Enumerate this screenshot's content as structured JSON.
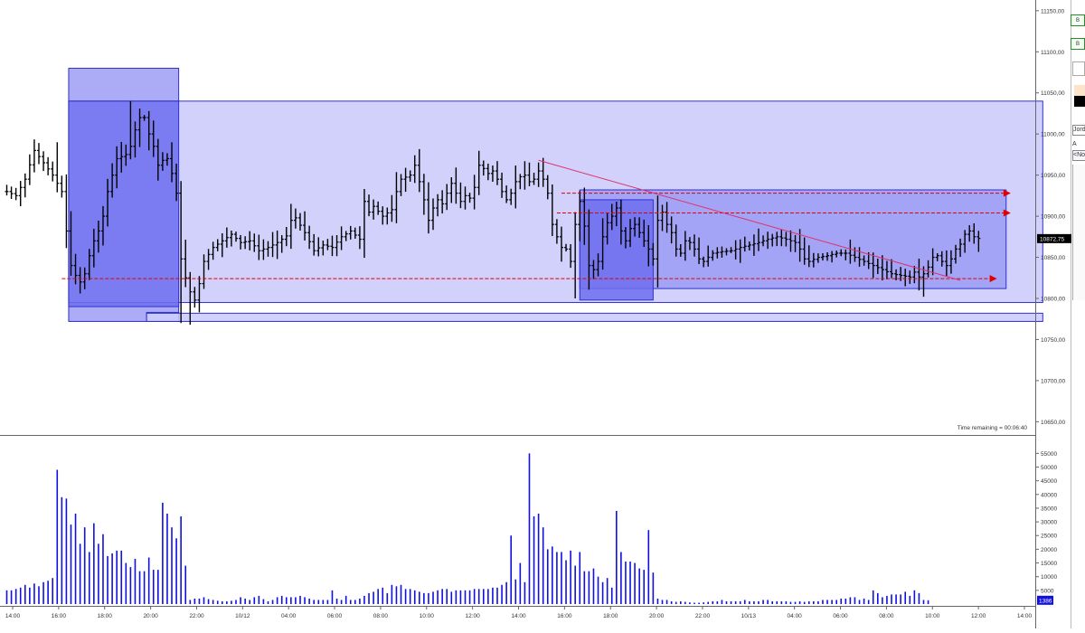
{
  "chart_data": [
    {
      "type": "ohlc",
      "x_ticks": [
        "14:00",
        "16:00",
        "18:00",
        "20:00",
        "22:00",
        "10/12",
        "04:00",
        "06:00",
        "08:00",
        "10:00",
        "12:00",
        "14:00",
        "16:00",
        "18:00",
        "20:00",
        "22:00",
        "10/13",
        "04:00",
        "06:00",
        "08:00",
        "10:00",
        "12:00",
        "14:00"
      ],
      "y_ticks": [
        "11150,00",
        "11100,00",
        "11050,00",
        "11000,00",
        "10950,00",
        "10900,00",
        "10850,00",
        "10800,00",
        "10750,00",
        "10700,00",
        "10650,00"
      ],
      "ylim": [
        10635,
        11163
      ],
      "last_price_label": "10872,75",
      "time_remaining": "Time remaining = 00:06:40",
      "anchors": [
        [
          0,
          10930
        ],
        [
          2,
          10925
        ],
        [
          4,
          10945
        ],
        [
          6,
          10980
        ],
        [
          8,
          10965
        ],
        [
          10,
          10950
        ],
        [
          12,
          10930
        ],
        [
          13,
          10882
        ],
        [
          14,
          10840
        ],
        [
          15,
          10828
        ],
        [
          16,
          10820
        ],
        [
          17,
          10830
        ],
        [
          18,
          10852
        ],
        [
          19,
          10870
        ],
        [
          20,
          10882
        ],
        [
          21,
          10900
        ],
        [
          22,
          10930
        ],
        [
          24,
          10970
        ],
        [
          26,
          10975
        ],
        [
          27,
          10985
        ],
        [
          28,
          11005
        ],
        [
          29,
          11020
        ],
        [
          30,
          11020
        ],
        [
          31,
          11000
        ],
        [
          32,
          10985
        ],
        [
          33,
          10962
        ],
        [
          34,
          10968
        ],
        [
          35,
          10970
        ],
        [
          36,
          10952
        ],
        [
          37,
          10928
        ],
        [
          38,
          10848
        ],
        [
          39,
          10825
        ],
        [
          40,
          10808
        ],
        [
          41,
          10798
        ],
        [
          42,
          10818
        ],
        [
          43,
          10845
        ],
        [
          45,
          10862
        ],
        [
          47,
          10870
        ],
        [
          49,
          10878
        ],
        [
          51,
          10868
        ],
        [
          53,
          10870
        ],
        [
          55,
          10858
        ],
        [
          57,
          10862
        ],
        [
          59,
          10868
        ],
        [
          61,
          10876
        ],
        [
          62,
          10895
        ],
        [
          63,
          10898
        ],
        [
          65,
          10880
        ],
        [
          67,
          10858
        ],
        [
          69,
          10865
        ],
        [
          71,
          10862
        ],
        [
          73,
          10875
        ],
        [
          75,
          10882
        ],
        [
          77,
          10872
        ],
        [
          78,
          10918
        ],
        [
          79,
          10905
        ],
        [
          80,
          10912
        ],
        [
          82,
          10900
        ],
        [
          84,
          10908
        ],
        [
          85,
          10930
        ],
        [
          86,
          10945
        ],
        [
          88,
          10950
        ],
        [
          89,
          10962
        ],
        [
          90,
          10942
        ],
        [
          91,
          10920
        ],
        [
          92,
          10895
        ],
        [
          93,
          10910
        ],
        [
          94,
          10920
        ],
        [
          95,
          10915
        ],
        [
          96,
          10928
        ],
        [
          97,
          10940
        ],
        [
          98,
          10928
        ],
        [
          99,
          10918
        ],
        [
          100,
          10925
        ],
        [
          101,
          10922
        ],
        [
          102,
          10935
        ],
        [
          103,
          10962
        ],
        [
          104,
          10958
        ],
        [
          105,
          10952
        ],
        [
          106,
          10955
        ],
        [
          107,
          10945
        ],
        [
          108,
          10930
        ],
        [
          109,
          10920
        ],
        [
          110,
          10928
        ],
        [
          111,
          10942
        ],
        [
          112,
          10948
        ],
        [
          113,
          10950
        ],
        [
          114,
          10942
        ],
        [
          115,
          10945
        ],
        [
          116,
          10955
        ],
        [
          117,
          10945
        ],
        [
          118,
          10928
        ],
        [
          119,
          10890
        ],
        [
          120,
          10875
        ],
        [
          121,
          10862
        ],
        [
          122,
          10860
        ],
        [
          123,
          10845
        ],
        [
          124,
          10890
        ],
        [
          125,
          10918
        ],
        [
          126,
          10888
        ],
        [
          127,
          10840
        ],
        [
          128,
          10835
        ],
        [
          129,
          10845
        ],
        [
          130,
          10875
        ],
        [
          131,
          10892
        ],
        [
          132,
          10900
        ],
        [
          133,
          10910
        ],
        [
          134,
          10882
        ],
        [
          135,
          10870
        ],
        [
          136,
          10885
        ],
        [
          137,
          10890
        ],
        [
          138,
          10880
        ],
        [
          139,
          10870
        ],
        [
          140,
          10860
        ],
        [
          141,
          10848
        ],
        [
          142,
          10895
        ],
        [
          143,
          10905
        ],
        [
          144,
          10890
        ],
        [
          145,
          10880
        ],
        [
          146,
          10860
        ],
        [
          147,
          10855
        ],
        [
          148,
          10870
        ],
        [
          149,
          10868
        ],
        [
          150,
          10860
        ],
        [
          151,
          10848
        ],
        [
          152,
          10845
        ],
        [
          154,
          10855
        ],
        [
          156,
          10857
        ],
        [
          158,
          10858
        ],
        [
          160,
          10862
        ],
        [
          162,
          10865
        ],
        [
          164,
          10868
        ],
        [
          166,
          10872
        ],
        [
          168,
          10875
        ],
        [
          170,
          10872
        ],
        [
          172,
          10868
        ],
        [
          173,
          10860
        ],
        [
          174,
          10848
        ],
        [
          175,
          10845
        ],
        [
          177,
          10850
        ],
        [
          179,
          10852
        ],
        [
          181,
          10855
        ],
        [
          183,
          10855
        ],
        [
          185,
          10850
        ],
        [
          187,
          10845
        ],
        [
          189,
          10840
        ],
        [
          191,
          10835
        ],
        [
          193,
          10830
        ],
        [
          195,
          10828
        ],
        [
          197,
          10826
        ],
        [
          198,
          10832
        ],
        [
          199,
          10826
        ],
        [
          200,
          10830
        ],
        [
          201,
          10838
        ],
        [
          202,
          10850
        ],
        [
          203,
          10852
        ],
        [
          204,
          10845
        ],
        [
          205,
          10840
        ],
        [
          206,
          10848
        ],
        [
          207,
          10860
        ],
        [
          208,
          10866
        ],
        [
          209,
          10878
        ],
        [
          210,
          10882
        ],
        [
          211,
          10875
        ],
        [
          212,
          10873
        ]
      ],
      "spikes": {
        "11": 10990,
        "27": 11040,
        "38": 10770,
        "40": 10768,
        "118": 10950,
        "124": 10800,
        "200": 10802
      },
      "boxes": [
        {
          "x0": 13.5,
          "x1": 37.5,
          "y0": 10772,
          "y1": 11080,
          "fill": "#9c9cf4"
        },
        {
          "x0": 13.5,
          "x1": 226,
          "y0": 10795,
          "y1": 11040,
          "fill": "#c9c9fb"
        },
        {
          "x0": 13.5,
          "x1": 37.5,
          "y0": 10790,
          "y1": 11040,
          "fill": "#6e6ef0"
        },
        {
          "x0": 30.5,
          "x1": 37.5,
          "y0": 10772,
          "y1": 10783,
          "fill": "#c9c9fb"
        },
        {
          "x0": 30.5,
          "x1": 226,
          "y0": 10772,
          "y1": 10782,
          "fill": "#c9c9fb"
        },
        {
          "x0": 125,
          "x1": 218,
          "y0": 10812,
          "y1": 10932,
          "fill": "#9c9cf4"
        },
        {
          "x0": 125,
          "x1": 141,
          "y0": 10798,
          "y1": 10920,
          "fill": "#6e6ef0"
        }
      ],
      "arrows": [
        {
          "x0": 12,
          "x1": 216,
          "y": 10824
        },
        {
          "x0": 120,
          "x1": 219,
          "y": 10904
        },
        {
          "x0": 121,
          "x1": 219,
          "y": 10928
        }
      ],
      "trendline": {
        "x0": 116,
        "y0": 10968,
        "x1": 208,
        "y1": 10822
      }
    },
    {
      "type": "bar",
      "y_ticks": [
        "55000",
        "50000",
        "45000",
        "40000",
        "35000",
        "30000",
        "25000",
        "20000",
        "15000",
        "10000",
        "5000"
      ],
      "ylim": [
        0,
        58000
      ],
      "last_volume_label": "1386",
      "values": [
        5000,
        5000,
        5500,
        6000,
        7000,
        6000,
        7500,
        6500,
        8000,
        8500,
        9500,
        49000,
        39000,
        38500,
        29000,
        33000,
        22000,
        28000,
        19000,
        29500,
        22000,
        25500,
        17500,
        18500,
        19500,
        19500,
        15000,
        13500,
        16500,
        12000,
        12000,
        17000,
        12500,
        12500,
        37000,
        33000,
        28000,
        24000,
        32000,
        14000,
        1500,
        2000,
        2000,
        2500,
        1800,
        1500,
        1200,
        1000,
        1000,
        1200,
        1500,
        2500,
        2000,
        1500,
        2500,
        3000,
        1800,
        1000,
        1500,
        2500,
        3000,
        2500,
        2500,
        2500,
        3000,
        2500,
        2000,
        1500,
        1500,
        1500,
        1500,
        5000,
        2000,
        1500,
        3000,
        1500,
        1500,
        2000,
        3000,
        4000,
        4500,
        5500,
        6000,
        4000,
        7000,
        6500,
        7000,
        5500,
        5500,
        5000,
        4500,
        4000,
        4000,
        4500,
        5000,
        5500,
        5500,
        4500,
        5000,
        5000,
        5000,
        5000,
        5500,
        5500,
        5500,
        5500,
        6000,
        6000,
        7000,
        8000,
        25000,
        9000,
        15000,
        8000,
        55000,
        32000,
        33000,
        28000,
        20000,
        21000,
        19000,
        19000,
        16000,
        19500,
        14000,
        19000,
        12000,
        12000,
        13000,
        10000,
        8000,
        9500,
        6000,
        34000,
        19000,
        15500,
        15500,
        15000,
        13000,
        12500,
        27000,
        11500,
        2000,
        1500,
        1500,
        1000,
        800,
        1000,
        800,
        600,
        500,
        500,
        600,
        800,
        1000,
        1000,
        1500,
        1000,
        1000,
        1000,
        1000,
        1500,
        1000,
        1000,
        1000,
        1500,
        1500,
        1000,
        1000,
        1000,
        1000,
        800,
        800,
        1000,
        800,
        1000,
        1000,
        1000,
        1500,
        1500,
        1500,
        1500,
        2000,
        2000,
        2500,
        2500,
        1500,
        2000,
        1500,
        5000,
        4000,
        2500,
        3000,
        3500,
        3500,
        3500,
        4500,
        3000,
        5000,
        4000,
        1500,
        1386
      ]
    }
  ],
  "side_panel": {
    "b1": "B",
    "b2": "B",
    "label_jord": "Jord",
    "label_a": "A",
    "label_no": "<No"
  }
}
